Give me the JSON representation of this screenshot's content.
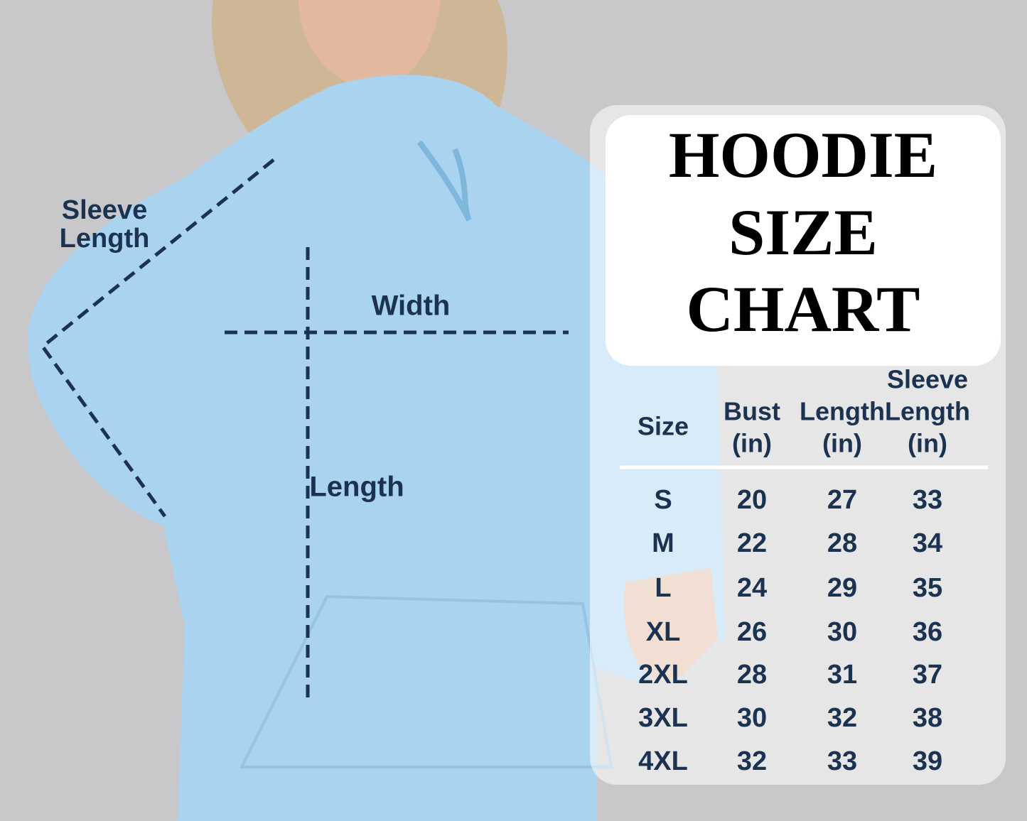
{
  "title": [
    "HOODIE",
    "SIZE",
    "CHART"
  ],
  "diagram": {
    "sleeve_label": [
      "Sleeve",
      "Length"
    ],
    "width_label": "Width",
    "length_label": "Length"
  },
  "table": {
    "header": [
      [
        "Size"
      ],
      [
        "Bust",
        "(in)"
      ],
      [
        "Length",
        "(in)"
      ],
      [
        "Sleeve",
        "Length",
        "(in)"
      ]
    ],
    "rows": [
      [
        "S",
        20,
        27,
        33
      ],
      [
        "M",
        22,
        28,
        34
      ],
      [
        "L",
        24,
        29,
        35
      ],
      [
        "XL",
        26,
        30,
        36
      ],
      [
        "2XL",
        28,
        31,
        37
      ],
      [
        "3XL",
        30,
        32,
        38
      ],
      [
        "4XL",
        32,
        33,
        39
      ]
    ]
  }
}
